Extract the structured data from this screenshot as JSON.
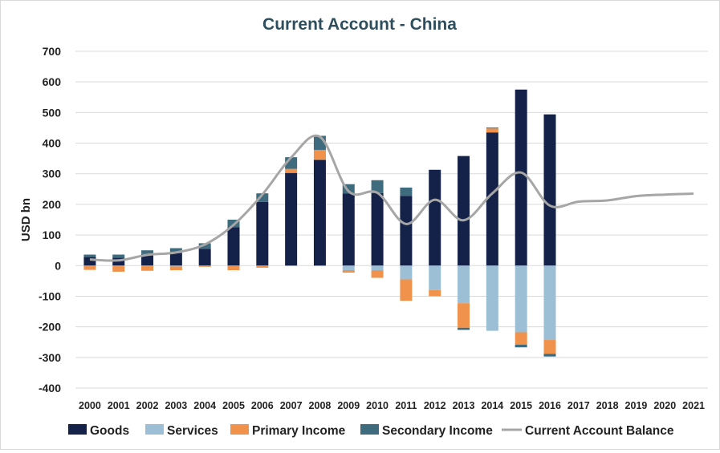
{
  "chart_data": {
    "type": "bar",
    "title": "Current Account - China",
    "ylabel": "USD bn",
    "xlabel": "",
    "ylim": [
      -400,
      700
    ],
    "yticks": [
      700,
      600,
      500,
      400,
      300,
      200,
      100,
      0,
      -100,
      -200,
      -300,
      -400
    ],
    "grid": true,
    "legend_position": "bottom",
    "categories": [
      "2000",
      "2001",
      "2002",
      "2003",
      "2004",
      "2005",
      "2006",
      "2007",
      "2008",
      "2009",
      "2010",
      "2011",
      "2012",
      "2013",
      "2014",
      "2015",
      "2016",
      "2017",
      "2018",
      "2019",
      "2020",
      "2021"
    ],
    "series": [
      {
        "name": "Goods",
        "kind": "bar",
        "color": "#14224a",
        "values": [
          28,
          26,
          38,
          40,
          55,
          125,
          208,
          303,
          346,
          236,
          237,
          228,
          313,
          358,
          435,
          575,
          494,
          null,
          null,
          null,
          null,
          null
        ]
      },
      {
        "name": "Services",
        "kind": "bar",
        "color": "#9dbfd6",
        "values": [
          -1,
          -2,
          -2,
          -3,
          -1,
          -1,
          -1,
          1,
          1,
          -15,
          -15,
          -45,
          -80,
          -123,
          -213,
          -218,
          -243,
          null,
          null,
          null,
          null,
          null
        ]
      },
      {
        "name": "Primary Income",
        "kind": "bar",
        "color": "#f0924b",
        "values": [
          -13,
          -18,
          -15,
          -12,
          -3,
          -14,
          -6,
          12,
          31,
          -8,
          -25,
          -70,
          -20,
          -80,
          13,
          -40,
          -45,
          null,
          null,
          null,
          null,
          null
        ]
      },
      {
        "name": "Secondary Income",
        "kind": "bar",
        "color": "#3f6b7e",
        "values": [
          8,
          10,
          12,
          17,
          18,
          25,
          28,
          38,
          46,
          30,
          42,
          27,
          0,
          -7,
          3,
          -9,
          -9,
          null,
          null,
          null,
          null,
          null
        ]
      },
      {
        "name": "Current Account Balance",
        "kind": "line",
        "color": "#a6a6a6",
        "values": [
          20,
          17,
          35,
          43,
          69,
          133,
          232,
          353,
          421,
          243,
          238,
          136,
          215,
          148,
          236,
          304,
          196,
          209,
          213,
          227,
          232,
          235
        ]
      }
    ]
  }
}
